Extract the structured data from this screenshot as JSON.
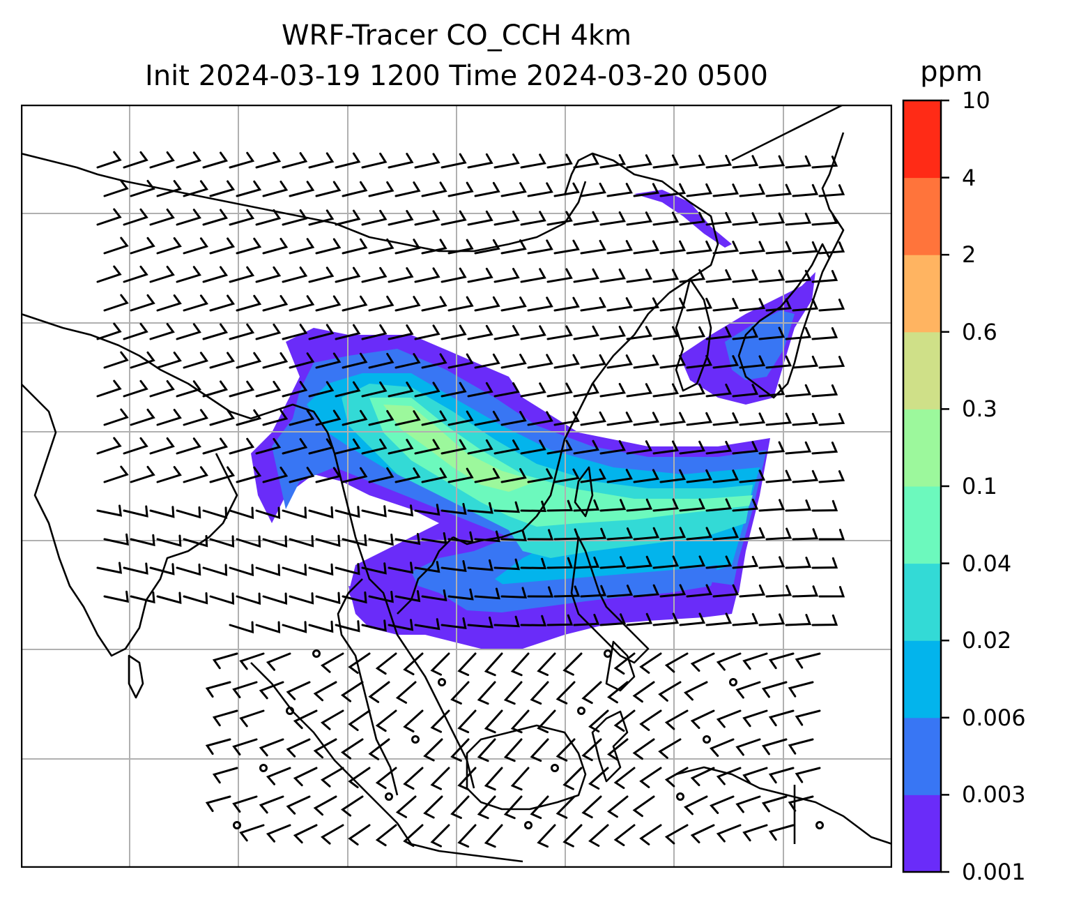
{
  "title": {
    "line1": "WRF-Tracer CO_CCH 4km",
    "line2": "Init 2024-03-19 1200 Time 2024-03-20 0500"
  },
  "colorbar": {
    "unit": "ppm",
    "levels": [
      "0.001",
      "0.003",
      "0.006",
      "0.02",
      "0.04",
      "0.1",
      "0.3",
      "0.6",
      "2",
      "4",
      "10"
    ],
    "colors": [
      "#6a2cf9",
      "#3876f4",
      "#03b4ec",
      "#33dad6",
      "#6cf9bd",
      "#9cf89c",
      "#cfe088",
      "#ffb461",
      "#ff743b",
      "#ff2b16"
    ]
  },
  "map": {
    "grid_color": "#b0b0b0",
    "coast_color": "#000000",
    "barb_color": "#000000"
  }
}
